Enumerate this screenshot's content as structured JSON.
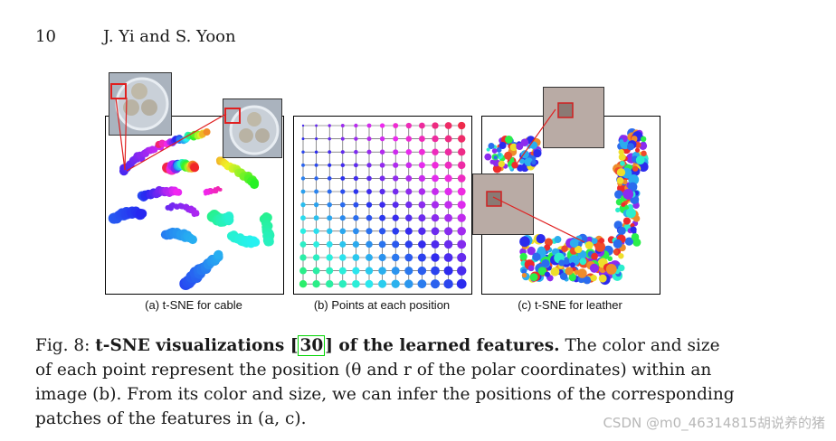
{
  "page": {
    "number": "10",
    "running_head": "J. Yi and S. Yoon"
  },
  "figure": {
    "panels": [
      {
        "id": "a",
        "label": "(a) t-SNE for cable"
      },
      {
        "id": "b",
        "label": "(b) Points at each position"
      },
      {
        "id": "c",
        "label": "(c) t-SNE for leather"
      }
    ],
    "colors": {
      "line_red": "#e02020",
      "grid_line": "#444444",
      "cable_thumb_bg": "#a9b2bd",
      "leather_thumb_bg": "#b7a9a3"
    },
    "grid_rows": 13,
    "grid_cols": 13
  },
  "caption": {
    "prefix": "Fig. 8: ",
    "bold_title_a": "t-SNE visualizations ",
    "cite": "30",
    "bold_title_b": " of the learned features.",
    "line1_rest": " The color and size",
    "line2": "of each point represent the position (θ and r of the polar coordinates) within an",
    "line3": "image (b). From its color and size, we can infer the positions of the corresponding",
    "line4": "patches of the features in (a, c)."
  },
  "watermark": "CSDN @m0_46314815胡说养的猪"
}
